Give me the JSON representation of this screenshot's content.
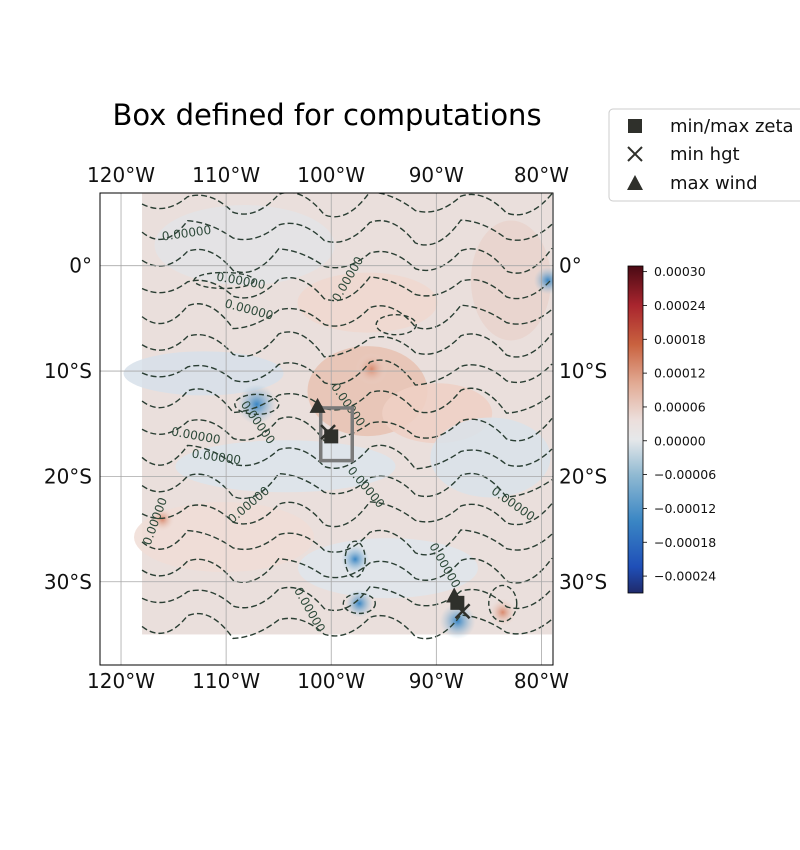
{
  "map": {
    "title": "Box defined for computations",
    "lon_ticks": [
      -120,
      -110,
      -100,
      -90,
      -80
    ],
    "lat_ticks": [
      0,
      -10,
      -20,
      -30
    ],
    "lon_tick_labels": [
      "120°W",
      "110°W",
      "100°W",
      "90°W",
      "80°W"
    ],
    "lat_tick_labels": [
      "0°",
      "10°S",
      "20°S",
      "30°S"
    ],
    "extent": {
      "lon_min": -122,
      "lon_max": -78.9,
      "lat_min": -37.9,
      "lat_max": 6.9
    },
    "data_extent": {
      "lon_min": -118,
      "lon_max": -79,
      "lat_min": -35,
      "lat_max": 7
    },
    "gridlines": true,
    "field": "zeta",
    "contour_style": "dashed",
    "contour_color": "#2a3e33",
    "contour_labels": [
      "0.00000",
      "0.00000",
      "0.00000",
      "0.00000",
      "0.00000",
      "0.00000",
      "0.00000",
      "0.00000",
      "0.00000",
      "0.00000",
      "0.00000",
      "0.00000",
      "0.00000",
      "0.00000"
    ]
  },
  "box": {
    "lon_min": -101,
    "lon_max": -98,
    "lat_min": -18.5,
    "lat_max": -13.5,
    "color": "#7a7a7a"
  },
  "markers": {
    "min_max_zeta": [
      {
        "lon": -100,
        "lat": -16.2
      },
      {
        "lon": -88,
        "lat": -32
      }
    ],
    "min_hgt": [
      {
        "lon": -100.3,
        "lat": -15.8
      },
      {
        "lon": -87.5,
        "lat": -32.8
      }
    ],
    "max_wind": [
      {
        "lon": -101.3,
        "lat": -13.3
      },
      {
        "lon": -88.3,
        "lat": -31.3
      }
    ]
  },
  "legend": {
    "items": [
      {
        "icon": "square-marker",
        "label": "min/max zeta"
      },
      {
        "icon": "x-marker",
        "label": "min hgt"
      },
      {
        "icon": "triangle-marker",
        "label": "max wind"
      }
    ],
    "placement": "outside-top-right",
    "marker_color": "#2f302b"
  },
  "colorbar": {
    "ticks": [
      "0.00030",
      "0.00024",
      "0.00018",
      "0.00012",
      "0.00006",
      "0.00000",
      "−0.00006",
      "−0.00012",
      "−0.00018",
      "−0.00024"
    ],
    "min": -0.00027,
    "max": 0.00031,
    "colormap": "diverging-blue-red"
  }
}
